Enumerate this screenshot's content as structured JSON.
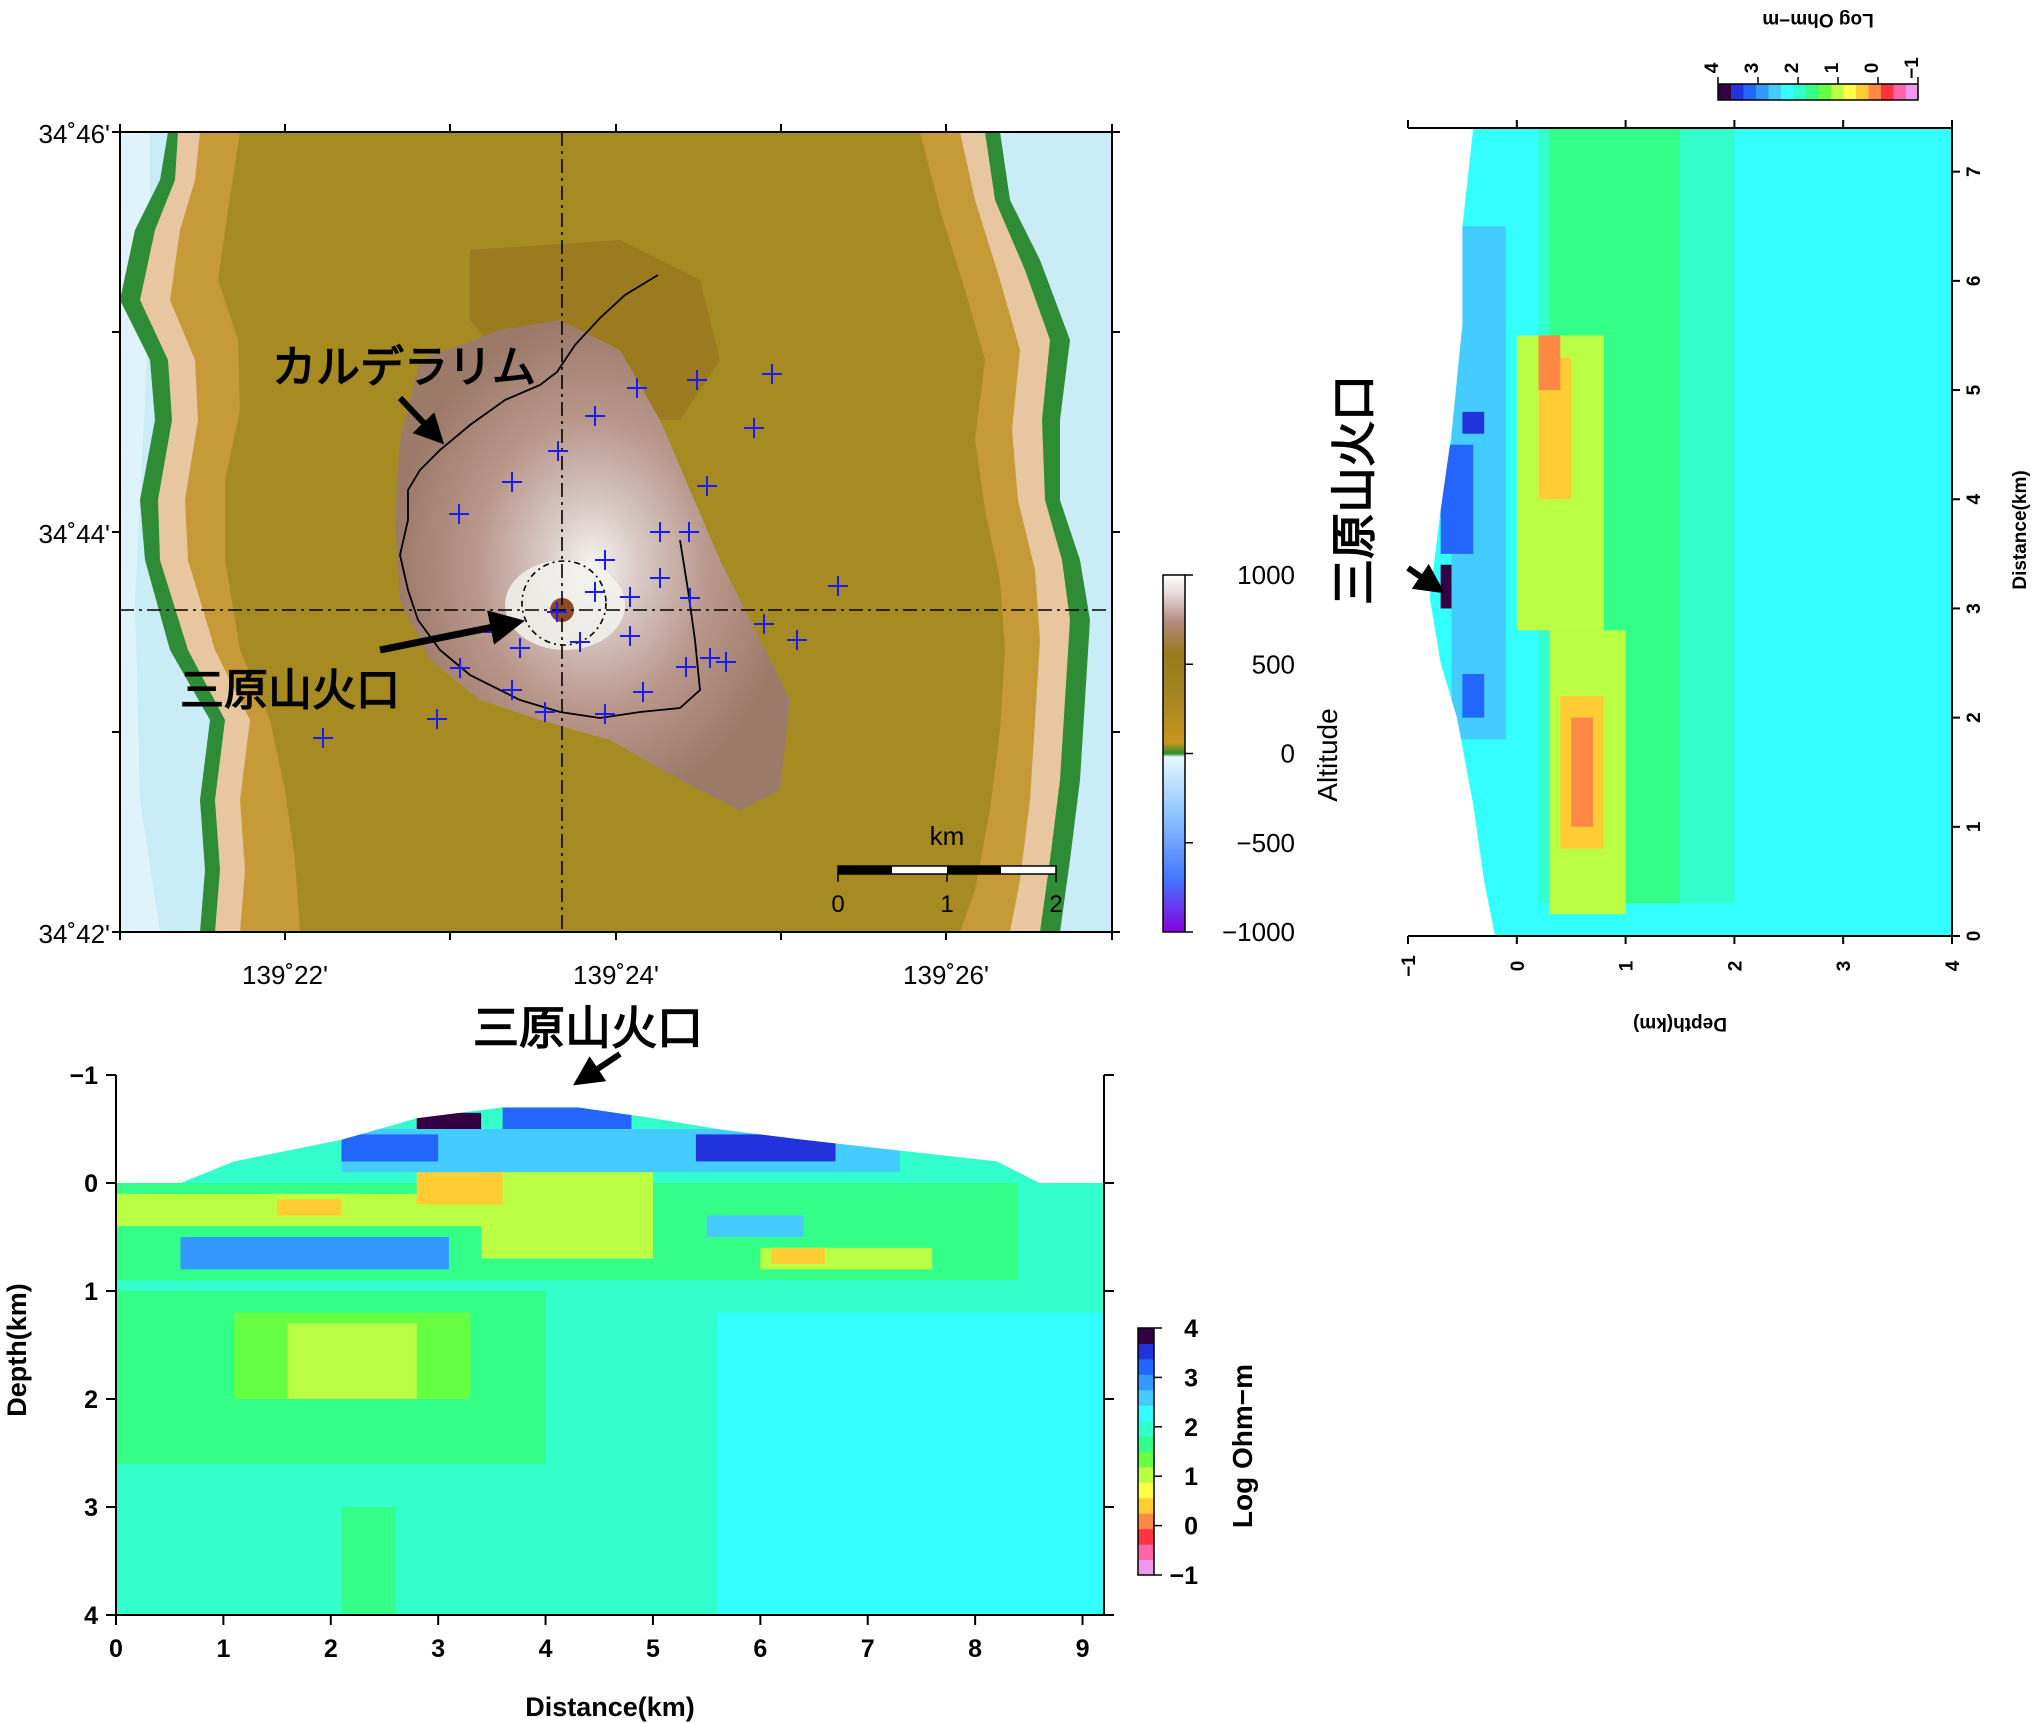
{
  "colors": {
    "frame": "#000000",
    "station": "#1b1bf2",
    "resistivity_scale": [
      "#ee99ee",
      "#ff66aa",
      "#ff3344",
      "#ff8844",
      "#ffcc33",
      "#ffff44",
      "#bbff44",
      "#66ff44",
      "#33ff88",
      "#33ffcc",
      "#33ffff",
      "#44ccff",
      "#3399ff",
      "#2266ff",
      "#2233dd",
      "#330044"
    ],
    "altitude_scale": [
      "#8800dd",
      "#4477ff",
      "#66aaff",
      "#aaddff",
      "#ddf4ff",
      "#2a8a2a",
      "#c89620",
      "#a88a1e",
      "#9a7a1e",
      "#b08878",
      "#d0b0b0",
      "#f2f2f2",
      "#ffffff"
    ]
  },
  "map": {
    "caldera_label": "カルデラリム",
    "crater_label": "三原山火口",
    "lat_ticks": [
      "34˚46'",
      "34˚44'",
      "34˚42'"
    ],
    "lon_ticks": [
      "139˚22'",
      "139˚24'",
      "139˚26'"
    ],
    "scalebar": {
      "label": "km",
      "ticks": [
        "0",
        "1",
        "2"
      ]
    },
    "stations_count_note": ""
  },
  "altitude_colorbar": {
    "title": "Altitude",
    "ticks": [
      "1000",
      "500",
      "0",
      "−500",
      "−1000"
    ],
    "values": [
      1000,
      500,
      0,
      -500,
      -1000
    ]
  },
  "chart_data": [
    {
      "type": "heatmap",
      "name": "ew_section",
      "xlabel": "Distance(km)",
      "ylabel": "Depth(km)",
      "xlim": [
        0,
        9.2
      ],
      "ylim": [
        -1,
        4
      ],
      "x_ticks": [
        "0",
        "1",
        "2",
        "3",
        "4",
        "5",
        "6",
        "7",
        "8",
        "9"
      ],
      "y_ticks": [
        "−1",
        "0",
        "1",
        "2",
        "3",
        "4"
      ],
      "annotation": "三原山火口",
      "colorbar": {
        "title": "Log Ohm−m",
        "ticks": [
          "4",
          "3",
          "2",
          "1",
          "0",
          "−1"
        ],
        "range": [
          -1,
          4
        ]
      },
      "topography": [
        [
          0,
          0
        ],
        [
          0.6,
          0
        ],
        [
          1.1,
          -0.2
        ],
        [
          2.1,
          -0.4
        ],
        [
          2.8,
          -0.6
        ],
        [
          3.6,
          -0.7
        ],
        [
          4.3,
          -0.7
        ],
        [
          5,
          -0.6
        ],
        [
          5.6,
          -0.5
        ],
        [
          6.4,
          -0.4
        ],
        [
          7.3,
          -0.3
        ],
        [
          8.2,
          -0.2
        ],
        [
          8.6,
          0
        ],
        [
          9.2,
          0
        ]
      ],
      "regions": [
        {
          "x": [
            0,
            9.2
          ],
          "y": [
            -1,
            4
          ],
          "v": 1.9
        },
        {
          "x": [
            5.6,
            9.2
          ],
          "y": [
            1.2,
            4
          ],
          "v": 2.2
        },
        {
          "x": [
            0,
            4.0
          ],
          "y": [
            1.0,
            2.6
          ],
          "v": 1.5
        },
        {
          "x": [
            1.1,
            3.3
          ],
          "y": [
            1.2,
            2.0
          ],
          "v": 1.2
        },
        {
          "x": [
            1.6,
            2.8
          ],
          "y": [
            1.3,
            2.0
          ],
          "v": 0.9
        },
        {
          "x": [
            2.1,
            2.6
          ],
          "y": [
            3.0,
            4.0
          ],
          "v": 1.5
        },
        {
          "x": [
            0,
            8.4
          ],
          "y": [
            0,
            0.9
          ],
          "v": 1.5
        },
        {
          "x": [
            0,
            3.5
          ],
          "y": [
            0.1,
            0.4
          ],
          "v": 1.0
        },
        {
          "x": [
            1.5,
            2.1
          ],
          "y": [
            0.15,
            0.3
          ],
          "v": 0.4
        },
        {
          "x": [
            3.4,
            5.0
          ],
          "y": [
            -0.2,
            0.7
          ],
          "v": 0.9
        },
        {
          "x": [
            0.6,
            3.1
          ],
          "y": [
            0.5,
            0.8
          ],
          "v": 2.8
        },
        {
          "x": [
            1.1,
            2.1
          ],
          "y": [
            0.55,
            0.75
          ],
          "v": 3.0
        },
        {
          "x": [
            5.5,
            6.4
          ],
          "y": [
            0.3,
            0.5
          ],
          "v": 2.6
        },
        {
          "x": [
            6.0,
            7.6
          ],
          "y": [
            0.6,
            0.8
          ],
          "v": 0.9
        },
        {
          "x": [
            6.1,
            6.6
          ],
          "y": [
            0.6,
            0.75
          ],
          "v": 0.3
        },
        {
          "x": [
            2.8,
            3.6
          ],
          "y": [
            -0.1,
            0.2
          ],
          "v": 0.5
        },
        {
          "x": [
            2.1,
            7.3
          ],
          "y": [
            -0.5,
            -0.1
          ],
          "v": 2.6
        },
        {
          "x": [
            2.1,
            3.0
          ],
          "y": [
            -0.45,
            -0.2
          ],
          "v": 3.3
        },
        {
          "x": [
            5.4,
            6.7
          ],
          "y": [
            -0.45,
            -0.2
          ],
          "v": 3.4
        },
        {
          "x": [
            2.8,
            3.4
          ],
          "y": [
            -0.65,
            -0.5
          ],
          "v": 4.0
        },
        {
          "x": [
            3.6,
            4.8
          ],
          "y": [
            -0.7,
            -0.5
          ],
          "v": 3.1
        }
      ]
    },
    {
      "type": "heatmap",
      "name": "ns_section",
      "xlabel": "Depth(km)",
      "ylabel": "Distance(km)",
      "xlim": [
        -1,
        4
      ],
      "ylim": [
        0,
        7.4
      ],
      "x_ticks": [
        "−1",
        "0",
        "1",
        "2",
        "3",
        "4"
      ],
      "y_ticks": [
        "0",
        "1",
        "2",
        "3",
        "4",
        "5",
        "6",
        "7"
      ],
      "annotation": "三原山火口",
      "colorbar": {
        "title": "Log Ohm−m",
        "ticks": [
          "4",
          "3",
          "2",
          "1",
          "0",
          "−1"
        ],
        "range": [
          -1,
          4
        ]
      },
      "topography": [
        [
          0,
          -0.2
        ],
        [
          0.5,
          -0.3
        ],
        [
          1.2,
          -0.4
        ],
        [
          2,
          -0.55
        ],
        [
          2.5,
          -0.7
        ],
        [
          3.1,
          -0.8
        ],
        [
          3.9,
          -0.7
        ],
        [
          4.6,
          -0.6
        ],
        [
          5.6,
          -0.5
        ],
        [
          6.5,
          -0.5
        ],
        [
          7.4,
          -0.4
        ]
      ],
      "regions": [
        {
          "x": [
            -1,
            4
          ],
          "y": [
            0,
            7.4
          ],
          "v": 2.2
        },
        {
          "x": [
            0.2,
            2.0
          ],
          "y": [
            0.3,
            7.4
          ],
          "v": 1.9
        },
        {
          "x": [
            0.3,
            1.5
          ],
          "y": [
            0.3,
            7.4
          ],
          "v": 1.6
        },
        {
          "x": [
            0.3,
            1.0
          ],
          "y": [
            0.2,
            2.8
          ],
          "v": 1.0
        },
        {
          "x": [
            0.4,
            0.8
          ],
          "y": [
            0.8,
            2.2
          ],
          "v": 0.4
        },
        {
          "x": [
            0.5,
            0.7
          ],
          "y": [
            1.0,
            2.0
          ],
          "v": 0.1
        },
        {
          "x": [
            0.0,
            0.8
          ],
          "y": [
            2.8,
            5.5
          ],
          "v": 1.0
        },
        {
          "x": [
            0.2,
            0.5
          ],
          "y": [
            4.0,
            5.3
          ],
          "v": 0.5
        },
        {
          "x": [
            0.2,
            0.4
          ],
          "y": [
            5.0,
            5.5
          ],
          "v": 0.2
        },
        {
          "x": [
            -0.6,
            -0.1
          ],
          "y": [
            1.8,
            6.5
          ],
          "v": 2.6
        },
        {
          "x": [
            -0.5,
            -0.3
          ],
          "y": [
            2.0,
            2.4
          ],
          "v": 3.3
        },
        {
          "x": [
            -0.7,
            -0.4
          ],
          "y": [
            3.5,
            4.5
          ],
          "v": 3.3
        },
        {
          "x": [
            -0.5,
            -0.3
          ],
          "y": [
            4.6,
            4.8
          ],
          "v": 3.6
        },
        {
          "x": [
            -0.7,
            -0.6
          ],
          "y": [
            3.0,
            3.4
          ],
          "v": 4.0
        }
      ]
    }
  ]
}
